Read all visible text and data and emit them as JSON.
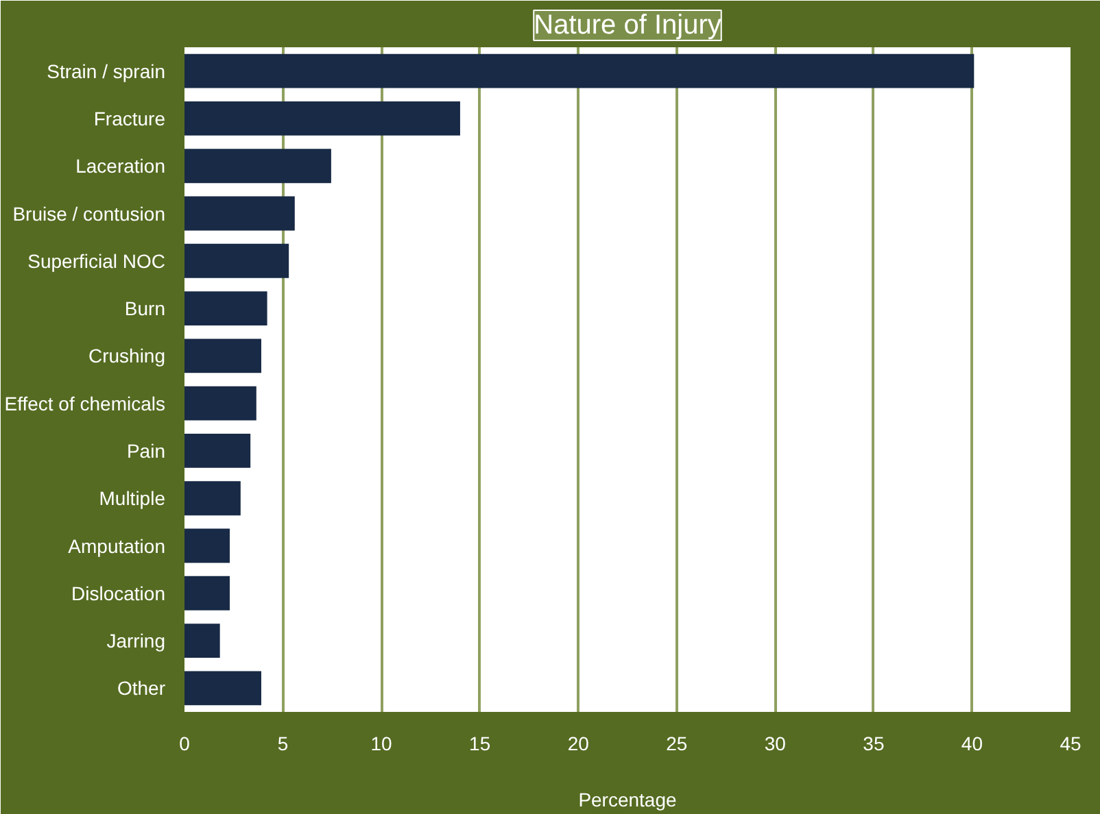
{
  "chart_data": {
    "type": "bar",
    "orientation": "horizontal",
    "title": "Nature of Injury",
    "xlabel": "Percentage",
    "categories": [
      "Strain / sprain",
      "Fracture",
      "Laceration",
      "Bruise / contusion",
      "Superficial NOC",
      "Burn",
      "Crushing",
      "Effect of chemicals",
      "Pain",
      "Multiple",
      "Amputation",
      "Dislocation",
      "Jarring",
      "Other"
    ],
    "values": [
      40.1,
      14.0,
      7.45,
      5.6,
      5.3,
      4.2,
      3.9,
      3.65,
      3.35,
      2.85,
      2.3,
      2.3,
      1.8,
      3.9
    ],
    "color": "#182a45",
    "xlim": [
      0,
      45
    ],
    "xticks": [
      0,
      5,
      10,
      15,
      20,
      25,
      30,
      35,
      40,
      45
    ],
    "grid": "x"
  }
}
